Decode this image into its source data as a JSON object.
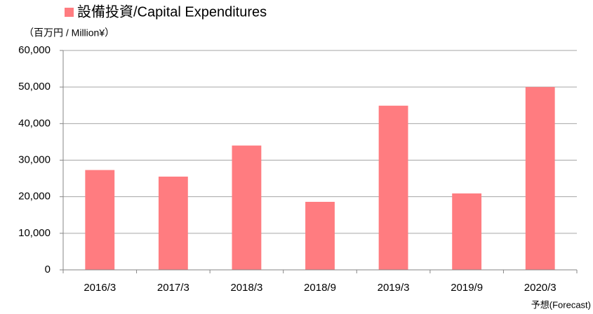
{
  "chart_data": {
    "type": "bar",
    "legend_label": "設備投資/Capital Expenditures",
    "y_axis_label": "（百万円 / Million¥）",
    "categories": [
      "2016/3",
      "2017/3",
      "2018/3",
      "2018/9",
      "2019/3",
      "2019/9",
      "2020/3"
    ],
    "values": [
      27300,
      25500,
      34000,
      18600,
      44900,
      20900,
      50000
    ],
    "color": "#ff7c80",
    "annotation": "予想(Forecast)",
    "ylim": [
      0,
      60000
    ],
    "yticks": [
      0,
      {
        "value": 10000,
        "label": "10,000"
      },
      {
        "value": 20000,
        "label": "20,000"
      },
      {
        "value": 30000,
        "label": "30,000"
      },
      {
        "value": 40000,
        "label": "40,000"
      },
      {
        "value": 50000,
        "label": "50,000"
      },
      {
        "value": 60000,
        "label": "60,000"
      }
    ],
    "grid": true
  }
}
